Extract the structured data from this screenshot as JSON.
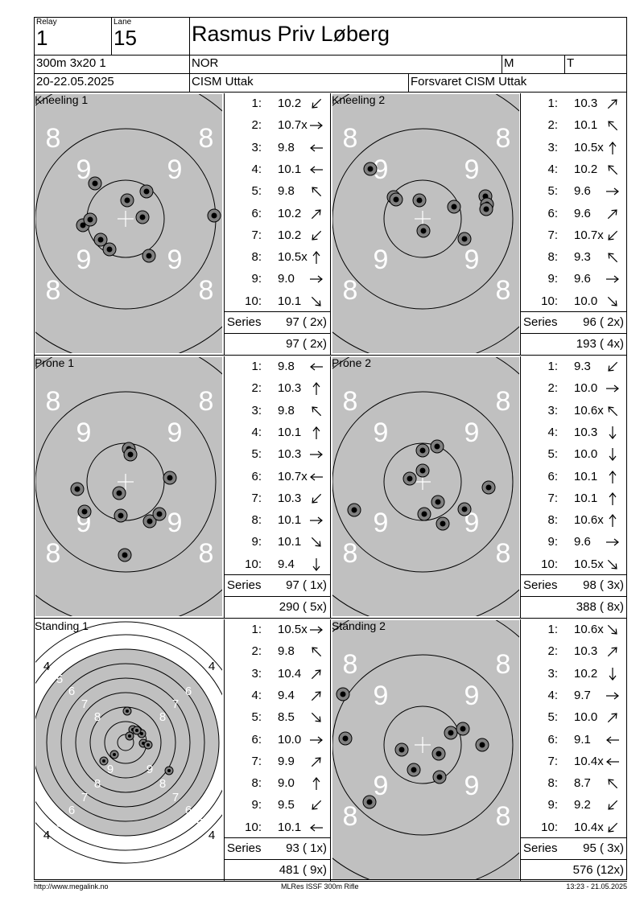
{
  "header": {
    "relay_label": "Relay",
    "relay_value": "1",
    "lane_label": "Lane",
    "lane_value": "15",
    "shooter_name": "Rasmus Priv Løberg",
    "event": "300m 3x20 1",
    "nation": "NOR",
    "gender": "M",
    "class": "T",
    "dates": "20-22.05.2025",
    "competition": "CISM Uttak",
    "organizer": "Forsvaret CISM Uttak"
  },
  "series": [
    {
      "label": "Kneeling 1",
      "shots": [
        {
          "n": "1:",
          "v": "10.2",
          "dir": "sw"
        },
        {
          "n": "2:",
          "v": "10.7x",
          "dir": "e"
        },
        {
          "n": "3:",
          "v": "9.8",
          "dir": "w"
        },
        {
          "n": "4:",
          "v": "10.1",
          "dir": "w"
        },
        {
          "n": "5:",
          "v": "9.8",
          "dir": "nw"
        },
        {
          "n": "6:",
          "v": "10.2",
          "dir": "ne"
        },
        {
          "n": "7:",
          "v": "10.2",
          "dir": "sw"
        },
        {
          "n": "8:",
          "v": "10.5x",
          "dir": "n"
        },
        {
          "n": "9:",
          "v": "9.0",
          "dir": "e"
        },
        {
          "n": "10:",
          "v": "10.1",
          "dir": "se"
        }
      ],
      "series_label": "Series",
      "series_total": "97 ( 2x)",
      "running_total": "97 ( 2x)"
    },
    {
      "label": "Kneeling 2",
      "shots": [
        {
          "n": "1:",
          "v": "10.3",
          "dir": "ne"
        },
        {
          "n": "2:",
          "v": "10.1",
          "dir": "nw"
        },
        {
          "n": "3:",
          "v": "10.5x",
          "dir": "n"
        },
        {
          "n": "4:",
          "v": "10.2",
          "dir": "nw"
        },
        {
          "n": "5:",
          "v": "9.6",
          "dir": "e"
        },
        {
          "n": "6:",
          "v": "9.6",
          "dir": "ne"
        },
        {
          "n": "7:",
          "v": "10.7x",
          "dir": "sw"
        },
        {
          "n": "8:",
          "v": "9.3",
          "dir": "nw"
        },
        {
          "n": "9:",
          "v": "9.6",
          "dir": "e"
        },
        {
          "n": "10:",
          "v": "10.0",
          "dir": "se"
        }
      ],
      "series_label": "Series",
      "series_total": "96 ( 2x)",
      "running_total": "193 ( 4x)"
    },
    {
      "label": "Prone 1",
      "shots": [
        {
          "n": "1:",
          "v": "9.8",
          "dir": "w"
        },
        {
          "n": "2:",
          "v": "10.3",
          "dir": "n"
        },
        {
          "n": "3:",
          "v": "9.8",
          "dir": "nw"
        },
        {
          "n": "4:",
          "v": "10.1",
          "dir": "n"
        },
        {
          "n": "5:",
          "v": "10.3",
          "dir": "e"
        },
        {
          "n": "6:",
          "v": "10.7x",
          "dir": "w"
        },
        {
          "n": "7:",
          "v": "10.3",
          "dir": "sw"
        },
        {
          "n": "8:",
          "v": "10.1",
          "dir": "e"
        },
        {
          "n": "9:",
          "v": "10.1",
          "dir": "se"
        },
        {
          "n": "10:",
          "v": "9.4",
          "dir": "s"
        }
      ],
      "series_label": "Series",
      "series_total": "97 ( 1x)",
      "running_total": "290 ( 5x)"
    },
    {
      "label": "Prone 2",
      "shots": [
        {
          "n": "1:",
          "v": "9.3",
          "dir": "sw"
        },
        {
          "n": "2:",
          "v": "10.0",
          "dir": "e"
        },
        {
          "n": "3:",
          "v": "10.6x",
          "dir": "nw"
        },
        {
          "n": "4:",
          "v": "10.3",
          "dir": "s"
        },
        {
          "n": "5:",
          "v": "10.0",
          "dir": "s"
        },
        {
          "n": "6:",
          "v": "10.1",
          "dir": "n"
        },
        {
          "n": "7:",
          "v": "10.1",
          "dir": "n"
        },
        {
          "n": "8:",
          "v": "10.6x",
          "dir": "n"
        },
        {
          "n": "9:",
          "v": "9.6",
          "dir": "e"
        },
        {
          "n": "10:",
          "v": "10.5x",
          "dir": "se"
        }
      ],
      "series_label": "Series",
      "series_total": "98 ( 3x)",
      "running_total": "388 ( 8x)"
    },
    {
      "label": "Standing 1",
      "shots": [
        {
          "n": "1:",
          "v": "10.5x",
          "dir": "e"
        },
        {
          "n": "2:",
          "v": "9.8",
          "dir": "nw"
        },
        {
          "n": "3:",
          "v": "10.4",
          "dir": "ne"
        },
        {
          "n": "4:",
          "v": "9.4",
          "dir": "ne"
        },
        {
          "n": "5:",
          "v": "8.5",
          "dir": "se"
        },
        {
          "n": "6:",
          "v": "10.0",
          "dir": "e"
        },
        {
          "n": "7:",
          "v": "9.9",
          "dir": "ne"
        },
        {
          "n": "8:",
          "v": "9.0",
          "dir": "n"
        },
        {
          "n": "9:",
          "v": "9.5",
          "dir": "sw"
        },
        {
          "n": "10:",
          "v": "10.1",
          "dir": "w"
        }
      ],
      "series_label": "Series",
      "series_total": "93 ( 1x)",
      "running_total": "481 ( 9x)"
    },
    {
      "label": "Standing 2",
      "shots": [
        {
          "n": "1:",
          "v": "10.6x",
          "dir": "se"
        },
        {
          "n": "2:",
          "v": "10.3",
          "dir": "ne"
        },
        {
          "n": "3:",
          "v": "10.2",
          "dir": "s"
        },
        {
          "n": "4:",
          "v": "9.7",
          "dir": "e"
        },
        {
          "n": "5:",
          "v": "10.0",
          "dir": "ne"
        },
        {
          "n": "6:",
          "v": "9.1",
          "dir": "w"
        },
        {
          "n": "7:",
          "v": "10.4x",
          "dir": "w"
        },
        {
          "n": "8:",
          "v": "8.7",
          "dir": "nw"
        },
        {
          "n": "9:",
          "v": "9.2",
          "dir": "sw"
        },
        {
          "n": "10:",
          "v": "10.4x",
          "dir": "sw"
        }
      ],
      "series_label": "Series",
      "series_total": "95 ( 3x)",
      "running_total": "576 (12x)"
    }
  ],
  "ring_numbers": {
    "normal": [
      "8",
      "9"
    ],
    "standing": [
      "4",
      "5",
      "6",
      "7",
      "8",
      "9"
    ]
  },
  "footer": {
    "website": "http://www.megalink.no",
    "software": "MLRes ISSF 300m Rifle",
    "timestamp": "13:23 - 21.05.2025"
  },
  "colors": {
    "target_fill": "#c0c0c0",
    "line": "#000000",
    "ring_number": "#ffffff",
    "shot_ring": "#808080"
  }
}
